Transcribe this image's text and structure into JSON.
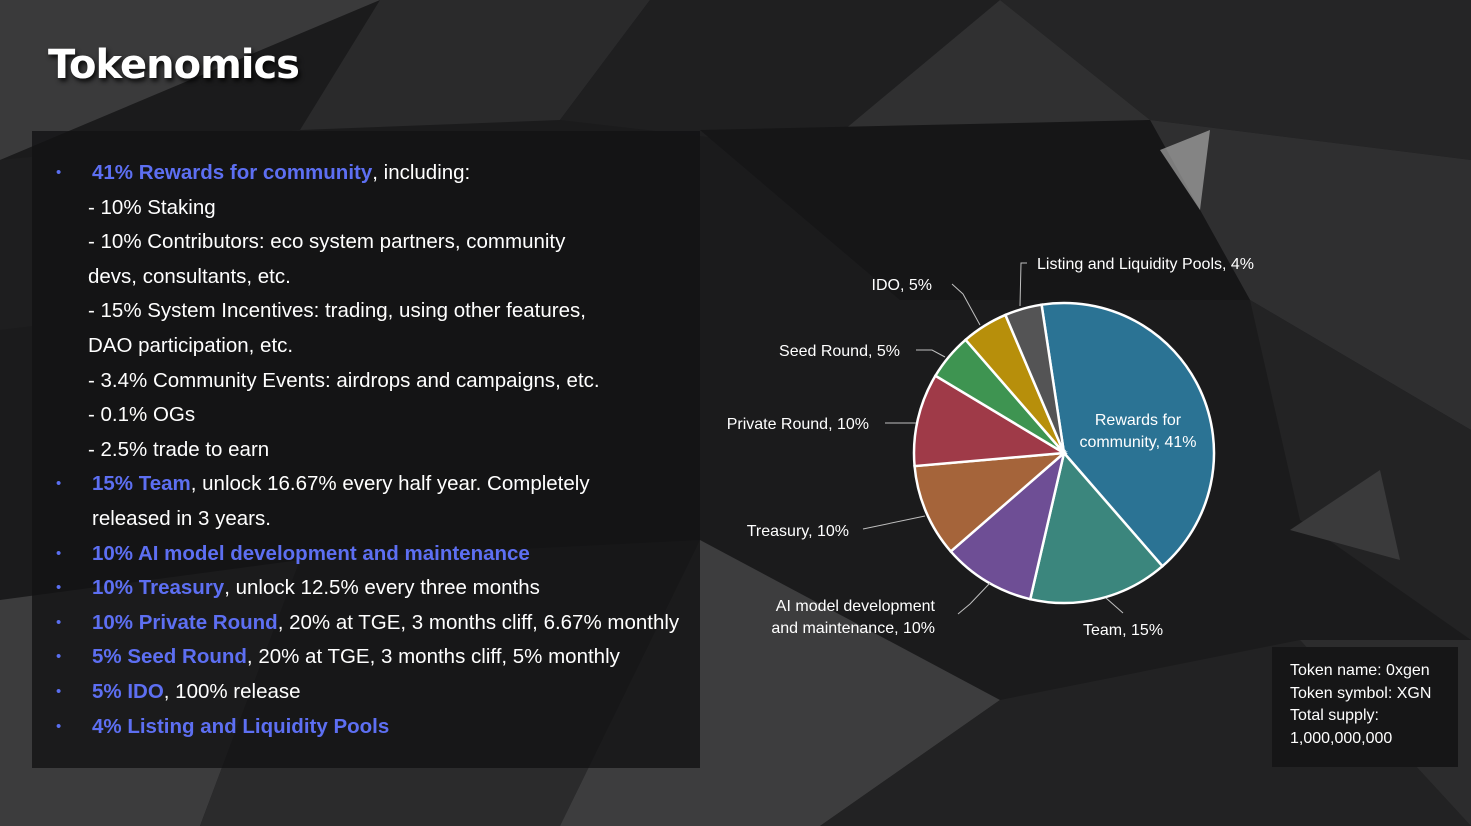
{
  "slide": {
    "title": "Tokenomics"
  },
  "allocation_list": [
    {
      "kind": "bullet",
      "highlight": "41% Rewards for community",
      "rest": ", including:"
    },
    {
      "kind": "sub",
      "text": "- 10% Staking"
    },
    {
      "kind": "sub",
      "text": "- 10% Contributors: eco system partners, community"
    },
    {
      "kind": "sub",
      "text": "devs, consultants, etc."
    },
    {
      "kind": "sub",
      "text": "- 15% System Incentives: trading, using other features,"
    },
    {
      "kind": "sub",
      "text": "DAO participation, etc."
    },
    {
      "kind": "sub",
      "text": "- 3.4% Community Events: airdrops and campaigns, etc."
    },
    {
      "kind": "sub",
      "text": "- 0.1% OGs"
    },
    {
      "kind": "sub",
      "text": "- 2.5% trade to earn"
    },
    {
      "kind": "bullet",
      "highlight": "15% Team",
      "rest": ", unlock 16.67% every half year. Completely"
    },
    {
      "kind": "cont",
      "text": "released in 3 years."
    },
    {
      "kind": "bullet",
      "highlight": "10% AI model development and maintenance",
      "rest": ""
    },
    {
      "kind": "bullet",
      "highlight": "10% Treasury",
      "rest": ", unlock 12.5% every three months"
    },
    {
      "kind": "bullet",
      "highlight": "10% Private Round",
      "rest": ", 20% at TGE, 3 months cliff, 6.67% monthly"
    },
    {
      "kind": "bullet",
      "highlight": "5% Seed Round",
      "rest": ", 20% at TGE, 3 months cliff, 5% monthly"
    },
    {
      "kind": "bullet",
      "highlight": "5% IDO",
      "rest": ", 100% release"
    },
    {
      "kind": "bullet",
      "highlight": "4% Listing and Liquidity Pools",
      "rest": ""
    }
  ],
  "chart_data": {
    "type": "pie",
    "slices": [
      {
        "label": "Rewards for community, 41%",
        "label_lines": [
          "Rewards for",
          "community, 41%"
        ],
        "value": 41,
        "color": "#2b7394"
      },
      {
        "label": "Team, 15%",
        "label_lines": [
          "Team, 15%"
        ],
        "value": 15,
        "color": "#3b867d"
      },
      {
        "label": "AI model development and maintenance, 10%",
        "label_lines": [
          "AI model development",
          "and maintenance, 10%"
        ],
        "value": 10,
        "color": "#6e4e95"
      },
      {
        "label": "Treasury, 10%",
        "label_lines": [
          "Treasury, 10%"
        ],
        "value": 10,
        "color": "#a5643a"
      },
      {
        "label": "Private Round, 10%",
        "label_lines": [
          "Private Round, 10%"
        ],
        "value": 10,
        "color": "#9f3a48"
      },
      {
        "label": "Seed Round, 5%",
        "label_lines": [
          "Seed Round, 5%"
        ],
        "value": 5,
        "color": "#3e9451"
      },
      {
        "label": "IDO, 5%",
        "label_lines": [
          "IDO, 5%"
        ],
        "value": 5,
        "color": "#b78f0b"
      },
      {
        "label": "Listing and Liquidity Pools, 4%",
        "label_lines": [
          "Listing and Liquidity Pools, 4%"
        ],
        "value": 4,
        "color": "#545455"
      }
    ]
  },
  "token_info": {
    "name_line": "Token name: 0xgen",
    "symbol_line": "Token symbol: XGN",
    "supply_label": "Total supply:",
    "supply_value": "1,000,000,000"
  }
}
